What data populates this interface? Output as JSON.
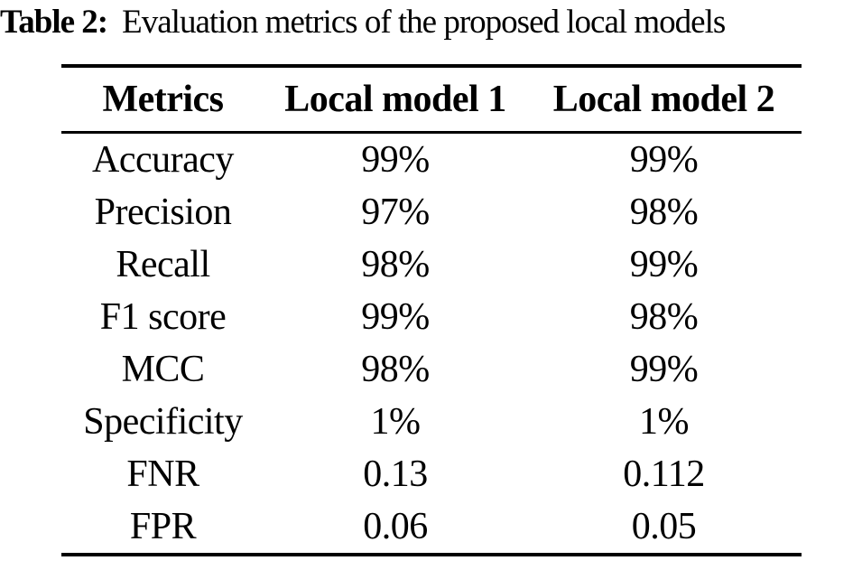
{
  "colors": {
    "background": "#ffffff",
    "text": "#000000",
    "rule": "#000000"
  },
  "caption": {
    "label": "Table 2:",
    "text": "Evaluation metrics of the proposed local models"
  },
  "table": {
    "headers": [
      "Metrics",
      "Local model 1",
      "Local model 2"
    ],
    "rows": [
      [
        "Accuracy",
        "99%",
        "99%"
      ],
      [
        "Precision",
        "97%",
        "98%"
      ],
      [
        "Recall",
        "98%",
        "99%"
      ],
      [
        "F1 score",
        "99%",
        "98%"
      ],
      [
        "MCC",
        "98%",
        "99%"
      ],
      [
        "Specificity",
        "1%",
        "1%"
      ],
      [
        "FNR",
        "0.13",
        "0.112"
      ],
      [
        "FPR",
        "0.06",
        "0.05"
      ]
    ]
  }
}
